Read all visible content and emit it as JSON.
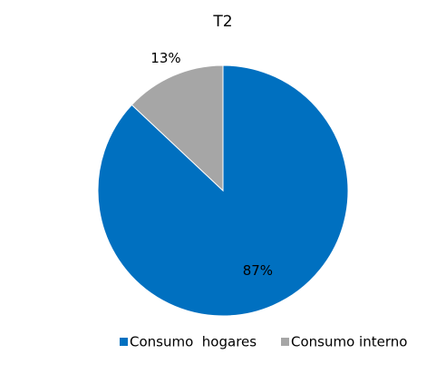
{
  "chart_data": {
    "type": "pie",
    "title": "T2",
    "categories": [
      "Consumo  hogares",
      "Consumo interno"
    ],
    "values": [
      87,
      13
    ],
    "value_labels": [
      "87%",
      "13%"
    ],
    "colors": [
      "#0070c0",
      "#a6a6a6"
    ],
    "legend": "bottom"
  }
}
